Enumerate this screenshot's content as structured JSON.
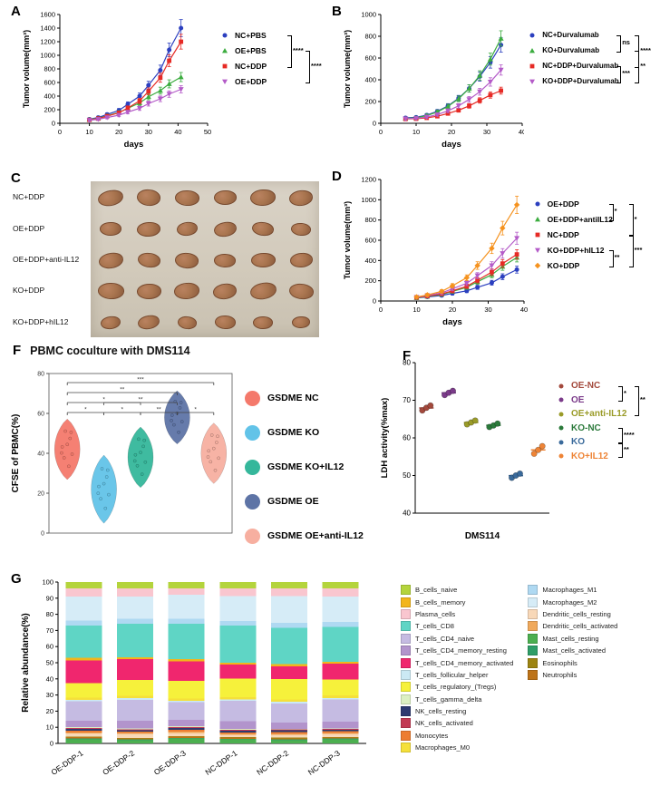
{
  "panels": {
    "A": {
      "letter": "A"
    },
    "B": {
      "letter": "B"
    },
    "C": {
      "letter": "C"
    },
    "D": {
      "letter": "D"
    },
    "E": {
      "letter": "F",
      "title": "PBMC coculture with DMS114"
    },
    "F": {
      "letter": "F"
    },
    "G": {
      "letter": "G"
    }
  },
  "tumor_photo": {
    "rows": [
      {
        "label": "NC+DDP",
        "sizes": [
          [
            26,
            15
          ],
          [
            24,
            16
          ],
          [
            25,
            15
          ],
          [
            23,
            14
          ],
          [
            26,
            16
          ],
          [
            24,
            15
          ]
        ]
      },
      {
        "label": "OE+DDP",
        "sizes": [
          [
            22,
            13
          ],
          [
            24,
            14
          ],
          [
            21,
            13
          ],
          [
            23,
            14
          ],
          [
            22,
            13
          ],
          [
            20,
            12
          ]
        ]
      },
      {
        "label": "OE+DDP+anti-IL12",
        "sizes": [
          [
            25,
            15
          ],
          [
            23,
            14
          ],
          [
            24,
            15
          ],
          [
            22,
            13
          ],
          [
            25,
            14
          ],
          [
            23,
            14
          ]
        ]
      },
      {
        "label": "KO+DDP",
        "sizes": [
          [
            27,
            16
          ],
          [
            25,
            15
          ],
          [
            26,
            16
          ],
          [
            24,
            15
          ],
          [
            27,
            16
          ],
          [
            25,
            15
          ]
        ]
      },
      {
        "label": "KO+DDP+hIL12",
        "sizes": [
          [
            20,
            12
          ],
          [
            22,
            13
          ],
          [
            19,
            12
          ],
          [
            21,
            13
          ],
          [
            20,
            12
          ],
          [
            18,
            11
          ]
        ]
      }
    ]
  },
  "chart_data": [
    {
      "id": "A",
      "type": "line",
      "xlabel": "days",
      "ylabel": "Tumor volume(mm³)",
      "xlim": [
        0,
        50
      ],
      "xticks": [
        0,
        10,
        20,
        30,
        40,
        50
      ],
      "ylim": [
        0,
        1600
      ],
      "yticks": [
        0,
        200,
        400,
        600,
        800,
        1000,
        1200,
        1400,
        1600
      ],
      "x": [
        10,
        13,
        16,
        20,
        23,
        27,
        30,
        34,
        37,
        41
      ],
      "series": [
        {
          "name": "NC+PBS",
          "color": "#2B3FBF",
          "marker": "circle",
          "values": [
            60,
            85,
            130,
            190,
            280,
            400,
            560,
            780,
            1080,
            1400
          ]
        },
        {
          "name": "OE+PBS",
          "color": "#3BAC3F",
          "marker": "triangle",
          "values": [
            55,
            75,
            110,
            160,
            220,
            300,
            390,
            480,
            580,
            680
          ]
        },
        {
          "name": "NC+DDP",
          "color": "#E62A25",
          "marker": "square",
          "values": [
            50,
            70,
            105,
            155,
            225,
            330,
            470,
            670,
            920,
            1200
          ]
        },
        {
          "name": "OE+DDP",
          "color": "#B45BC8",
          "marker": "triangle-down",
          "values": [
            45,
            60,
            85,
            120,
            165,
            220,
            290,
            360,
            430,
            500
          ]
        }
      ],
      "sig": [
        {
          "rows": [
            0,
            2
          ],
          "label": "****",
          "col": 0
        },
        {
          "rows": [
            1,
            3
          ],
          "label": "****",
          "col": 1
        }
      ]
    },
    {
      "id": "B",
      "type": "line",
      "xlabel": "days",
      "ylabel": "Tumor volume(mm³)",
      "xlim": [
        0,
        40
      ],
      "xticks": [
        0,
        10,
        20,
        30,
        40
      ],
      "ylim": [
        0,
        1000
      ],
      "yticks": [
        0,
        200,
        400,
        600,
        800,
        1000
      ],
      "x": [
        7,
        10,
        13,
        16,
        19,
        22,
        25,
        28,
        31,
        34
      ],
      "series": [
        {
          "name": "NC+Durvalumab",
          "color": "#2B3FBF",
          "marker": "circle",
          "values": [
            50,
            55,
            75,
            110,
            160,
            230,
            320,
            430,
            560,
            720
          ]
        },
        {
          "name": "KO+Durvalumab",
          "color": "#3BAC3F",
          "marker": "triangle",
          "values": [
            45,
            50,
            70,
            105,
            155,
            225,
            320,
            440,
            590,
            780
          ]
        },
        {
          "name": "NC+DDP+Durvalumab",
          "color": "#E62A25",
          "marker": "square",
          "values": [
            40,
            42,
            50,
            65,
            90,
            120,
            160,
            210,
            260,
            300
          ]
        },
        {
          "name": "KO+DDP+Durvalumab",
          "color": "#B45BC8",
          "marker": "triangle-down",
          "values": [
            42,
            46,
            58,
            80,
            115,
            160,
            220,
            290,
            380,
            490
          ]
        }
      ],
      "sig": [
        {
          "rows": [
            0,
            1
          ],
          "label": "ns",
          "col": 0
        },
        {
          "rows": [
            2,
            3
          ],
          "label": "***",
          "col": 0
        },
        {
          "rows": [
            0,
            2
          ],
          "label": "****",
          "col": 1
        },
        {
          "rows": [
            1,
            3
          ],
          "label": "**",
          "col": 1
        }
      ]
    },
    {
      "id": "D",
      "type": "line",
      "xlabel": "days",
      "ylabel": "Tumor volume(mm³)",
      "xlim": [
        0,
        40
      ],
      "xticks": [
        0,
        10,
        20,
        30,
        40
      ],
      "ylim": [
        0,
        1200
      ],
      "yticks": [
        0,
        200,
        400,
        600,
        800,
        1000,
        1200
      ],
      "x": [
        10,
        13,
        17,
        20,
        24,
        27,
        31,
        34,
        38
      ],
      "series": [
        {
          "name": "OE+DDP",
          "color": "#2B3FBF",
          "marker": "circle",
          "values": [
            30,
            40,
            55,
            75,
            100,
            135,
            180,
            240,
            310
          ]
        },
        {
          "name": "OE+DDP+antiIL12",
          "color": "#3BAC3F",
          "marker": "triangle",
          "values": [
            32,
            45,
            65,
            95,
            135,
            190,
            260,
            340,
            430
          ]
        },
        {
          "name": "NC+DDP",
          "color": "#E62A25",
          "marker": "square",
          "values": [
            35,
            48,
            70,
            100,
            145,
            205,
            285,
            370,
            460
          ]
        },
        {
          "name": "KO+DDP+hIL12",
          "color": "#B45BC8",
          "marker": "triangle-down",
          "values": [
            38,
            55,
            80,
            120,
            175,
            250,
            350,
            470,
            620
          ]
        },
        {
          "name": "KO+DDP",
          "color": "#F5921E",
          "marker": "diamond",
          "values": [
            40,
            60,
            95,
            150,
            230,
            350,
            520,
            720,
            950
          ]
        }
      ],
      "sig": [
        {
          "rows": [
            0,
            1
          ],
          "label": "*",
          "col": 0
        },
        {
          "rows": [
            3,
            4
          ],
          "label": "**",
          "col": 0
        },
        {
          "rows": [
            0,
            2
          ],
          "label": "*",
          "col": 1
        },
        {
          "rows": [
            2,
            4
          ],
          "label": "***",
          "col": 1
        }
      ]
    },
    {
      "id": "E",
      "type": "violin",
      "title": "PBMC coculture with DMS114",
      "ylabel": "CFSE of PBMC(%)",
      "ylim": [
        0,
        80
      ],
      "yticks": [
        0,
        20,
        40,
        60,
        80
      ],
      "groups": [
        {
          "name": "GSDME NC",
          "color": "#F4796B",
          "center": 42,
          "spread": 8
        },
        {
          "name": "GSDME KO",
          "color": "#62C3E8",
          "center": 22,
          "spread": 9
        },
        {
          "name": "GSDME KO+IL12",
          "color": "#35B79B",
          "center": 38,
          "spread": 8
        },
        {
          "name": "GSDME OE",
          "color": "#5E74A6",
          "center": 58,
          "spread": 7
        },
        {
          "name": "GSDME OE+anti-IL12",
          "color": "#F7AFA0",
          "center": 40,
          "spread": 8
        }
      ],
      "brackets": [
        {
          "from": 0,
          "to": 1,
          "level": 0,
          "label": "*"
        },
        {
          "from": 1,
          "to": 2,
          "level": 0,
          "label": "*"
        },
        {
          "from": 2,
          "to": 3,
          "level": 0,
          "label": "**"
        },
        {
          "from": 3,
          "to": 4,
          "level": 0,
          "label": "*"
        },
        {
          "from": 0,
          "to": 2,
          "level": 1,
          "label": "*"
        },
        {
          "from": 1,
          "to": 3,
          "level": 1,
          "label": "**"
        },
        {
          "from": 0,
          "to": 3,
          "level": 2,
          "label": "**"
        },
        {
          "from": 0,
          "to": 4,
          "level": 3,
          "label": "***"
        }
      ]
    },
    {
      "id": "F",
      "type": "scatter",
      "xlabel": "DMS114",
      "ylabel": "LDH activity(%max)",
      "ylim": [
        40,
        80
      ],
      "yticks": [
        40,
        50,
        60,
        70,
        80
      ],
      "groups": [
        {
          "name": "OE-NC",
          "color": "#A3493C",
          "values": [
            67.3,
            68.0,
            68.6
          ]
        },
        {
          "name": "OE",
          "color": "#7B3B8A",
          "values": [
            71.4,
            72.0,
            72.5
          ]
        },
        {
          "name": "OE+anti-IL12",
          "color": "#9A9B28",
          "values": [
            63.6,
            64.1,
            64.6
          ]
        },
        {
          "name": "KO-NC",
          "color": "#2B7A3B",
          "values": [
            62.9,
            63.3,
            63.8
          ]
        },
        {
          "name": "KO",
          "color": "#3A6A9B",
          "values": [
            49.4,
            50.0,
            50.5
          ]
        },
        {
          "name": "KO+IL12",
          "color": "#EE8436",
          "values": [
            55.8,
            56.8,
            57.8
          ]
        }
      ],
      "sig": [
        {
          "rows": [
            0,
            1
          ],
          "label": "*",
          "col": 0
        },
        {
          "rows": [
            0,
            2
          ],
          "label": "**",
          "col": 1
        },
        {
          "rows": [
            3,
            4
          ],
          "label": "****",
          "col": 0
        },
        {
          "rows": [
            4,
            5
          ],
          "label": "**",
          "col": 0
        }
      ]
    },
    {
      "id": "G",
      "type": "stacked-bar",
      "ylabel": "Relative abundance(%)",
      "ylim": [
        0,
        100
      ],
      "yticks": [
        0,
        10,
        20,
        30,
        40,
        50,
        60,
        70,
        80,
        90,
        100
      ],
      "categories": [
        "OE-DDP-1",
        "OE-DDP-2",
        "OE-DDP-3",
        "NC-DDP-1",
        "NC-DDP-2",
        "NC-DDP-3"
      ],
      "series": [
        {
          "name": "Mast_cells_resting",
          "color": "#4CAF50",
          "values": [
            2.5,
            2,
            3,
            2.5,
            2,
            2.5
          ]
        },
        {
          "name": "Mast_cells_activated",
          "color": "#2F9E68",
          "values": [
            0.5,
            0.5,
            0.5,
            0.5,
            0.5,
            0.5
          ]
        },
        {
          "name": "Neutrophils",
          "color": "#BD7318",
          "values": [
            0.8,
            0.6,
            0.8,
            0.7,
            0.8,
            0.6
          ]
        },
        {
          "name": "Eosinophils",
          "color": "#9C8412",
          "values": [
            0.3,
            0.3,
            0.3,
            0.3,
            0.3,
            0.3
          ]
        },
        {
          "name": "Dendritic_cells_resting",
          "color": "#F8D8B8",
          "values": [
            2,
            2.5,
            2,
            1.5,
            2,
            2
          ]
        },
        {
          "name": "Dendritic_cells_activated",
          "color": "#F0A95C",
          "values": [
            0.7,
            0.5,
            0.7,
            0.6,
            0.5,
            0.7
          ]
        },
        {
          "name": "Monocytes",
          "color": "#ED7D31",
          "values": [
            1.2,
            1,
            1.3,
            1,
            1.2,
            1
          ]
        },
        {
          "name": "NK_cells_resting",
          "color": "#2D3A70",
          "values": [
            1,
            0.8,
            1,
            1.2,
            1,
            0.9
          ]
        },
        {
          "name": "NK_cells_activated",
          "color": "#C23A54",
          "values": [
            0.5,
            0.5,
            0.5,
            0.5,
            0.5,
            0.5
          ]
        },
        {
          "name": "T_cells_gamma_delta",
          "color": "#DCF0C2",
          "values": [
            0.5,
            0.5,
            0.5,
            0.5,
            0.5,
            0.5
          ]
        },
        {
          "name": "T_cells_CD4_memory_resting",
          "color": "#B294CC",
          "values": [
            4,
            5,
            4,
            5,
            4,
            4
          ]
        },
        {
          "name": "T_cells_CD4_naive",
          "color": "#C5BBE2",
          "values": [
            12,
            13,
            11,
            13,
            12,
            14
          ]
        },
        {
          "name": "T_cells_follicular_helper",
          "color": "#CBE9F4",
          "values": [
            1,
            1,
            1,
            1,
            1,
            1
          ]
        },
        {
          "name": "Macrophages_M0",
          "color": "#F5E03A",
          "values": [
            1.5,
            1.5,
            1.5,
            1.5,
            1.5,
            1.5
          ]
        },
        {
          "name": "T_cells_regulatory_(Tregs)",
          "color": "#F6F13B",
          "values": [
            9,
            10,
            11,
            12,
            13,
            10
          ]
        },
        {
          "name": "T_cells_CD4_memory_activated",
          "color": "#F0266E",
          "values": [
            14,
            13,
            12,
            9,
            8,
            10
          ]
        },
        {
          "name": "B_cells_memory",
          "color": "#F2B51A",
          "values": [
            1.5,
            1,
            1.5,
            1,
            1.5,
            1
          ]
        },
        {
          "name": "T_cells_CD8",
          "color": "#5FD5C5",
          "values": [
            20,
            21,
            22,
            24,
            23,
            22
          ]
        },
        {
          "name": "Macrophages_M1",
          "color": "#AFD9F2",
          "values": [
            3,
            3,
            3,
            3,
            3,
            3
          ]
        },
        {
          "name": "Macrophages_M2",
          "color": "#D6ECF7",
          "values": [
            15,
            14,
            15,
            16,
            17,
            16
          ]
        },
        {
          "name": "Plasma_cells",
          "color": "#F9C6CF",
          "values": [
            5,
            5,
            4,
            5,
            5,
            5
          ]
        },
        {
          "name": "B_cells_naive",
          "color": "#B4D43C",
          "values": [
            4,
            4,
            4,
            4,
            4,
            4
          ]
        }
      ],
      "legend_left": [
        "B_cells_naive",
        "B_cells_memory",
        "Plasma_cells",
        "T_cells_CD8",
        "T_cells_CD4_naive",
        "T_cells_CD4_memory_resting",
        "T_cells_CD4_memory_activated",
        "T_cells_follicular_helper",
        "T_cells_regulatory_(Tregs)",
        "T_cells_gamma_delta",
        "NK_cells_resting",
        "NK_cells_activated",
        "Monocytes",
        "Macrophages_M0"
      ],
      "legend_right": [
        "Macrophages_M1",
        "Macrophages_M2",
        "Dendritic_cells_resting",
        "Dendritic_cells_activated",
        "Mast_cells_resting",
        "Mast_cells_activated",
        "Eosinophils",
        "Neutrophils"
      ]
    }
  ]
}
